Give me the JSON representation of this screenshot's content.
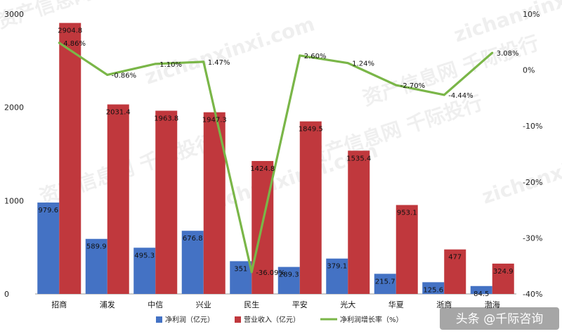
{
  "chart_data": {
    "type": "bar",
    "categories": [
      "招商",
      "浦发",
      "中信",
      "兴业",
      "民生",
      "平安",
      "光大",
      "华夏",
      "浙商",
      "渤海"
    ],
    "series": [
      {
        "name": "净利润（亿元）",
        "kind": "bar",
        "axis": "left",
        "color": "#4472c4",
        "values": [
          979.6,
          589.9,
          495.3,
          676.8,
          351,
          289.3,
          379.1,
          215.7,
          125.6,
          84.5
        ],
        "labels": [
          "979.6",
          "589.9",
          "495.3",
          "676.8",
          "351",
          "289.3",
          "379.1",
          "215.7",
          "125.6",
          "84.5"
        ]
      },
      {
        "name": "营业收入（亿元）",
        "kind": "bar",
        "axis": "left",
        "color": "#c0383d",
        "values": [
          2904.8,
          2031.4,
          1963.8,
          1947.3,
          1424.8,
          1849.5,
          1535.4,
          953.1,
          477,
          324.9
        ],
        "labels": [
          "2904.8",
          "2031.4",
          "1963.8",
          "1947.3",
          "1424.8",
          "1849.5",
          "1535.4",
          "953.1",
          "477",
          "324.9"
        ]
      },
      {
        "name": "净利润增长率（%）",
        "kind": "line",
        "axis": "right",
        "color": "#7ab648",
        "values": [
          4.86,
          -0.86,
          1.1,
          1.47,
          -36.09,
          2.6,
          1.24,
          -2.7,
          -4.44,
          3.08
        ],
        "labels": [
          "4.86%",
          "-0.86%",
          "1.10%",
          "1.47%",
          "-36.09%",
          "2.60%",
          "1.24%",
          "-2.70%",
          "-4.44%",
          "3.08%"
        ]
      }
    ],
    "left_axis": {
      "min": 0,
      "max": 3000,
      "ticks": [
        0,
        1000,
        2000,
        3000
      ],
      "tick_labels": [
        "0",
        "1000",
        "2000",
        "3000"
      ]
    },
    "right_axis": {
      "min": -40,
      "max": 10,
      "ticks": [
        10,
        0,
        -10,
        -20,
        -30,
        -40
      ],
      "tick_labels": [
        "10%",
        "0%",
        "-10%",
        "-20%",
        "-30%",
        "-40%"
      ]
    },
    "grid": false,
    "legend_position": "bottom"
  },
  "watermarks": [
    "资产信息网 千际投行",
    "zichanxinxi.com"
  ],
  "credit": "头条 @千际咨询"
}
